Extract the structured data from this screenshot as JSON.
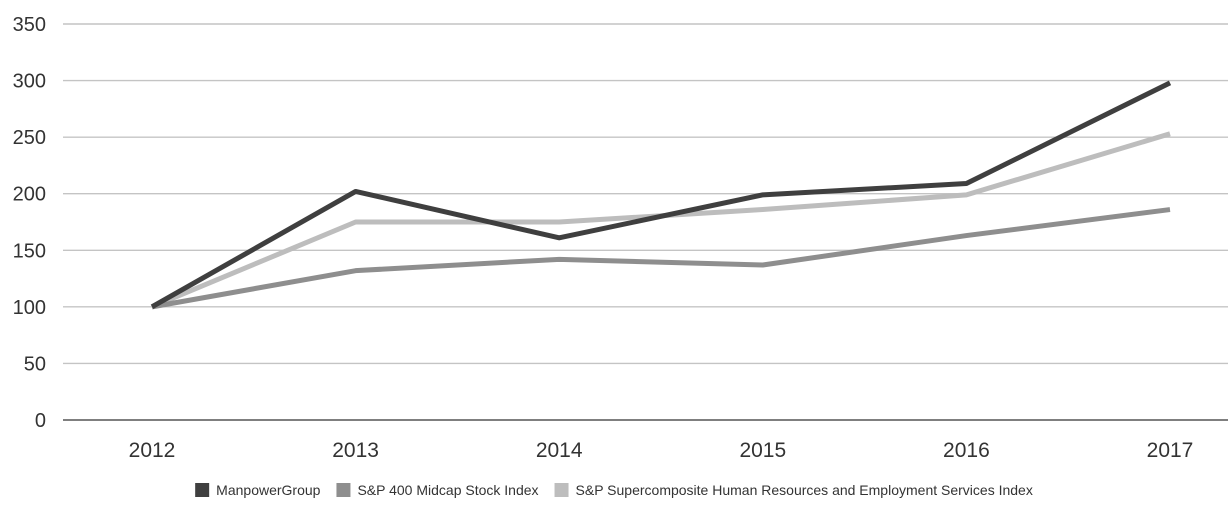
{
  "chart_data": {
    "type": "line",
    "title": "",
    "xlabel": "",
    "ylabel": "",
    "categories": [
      "2012",
      "2013",
      "2014",
      "2015",
      "2016",
      "2017"
    ],
    "ylim": [
      0,
      350
    ],
    "yticks": [
      0,
      50,
      100,
      150,
      200,
      250,
      300,
      350
    ],
    "grid": true,
    "legend_position": "bottom",
    "series": [
      {
        "name": "ManpowerGroup",
        "values": [
          100,
          202,
          161,
          199,
          209,
          298
        ],
        "color": "#3f3f3f"
      },
      {
        "name": "S&P 400 Midcap Stock Index",
        "values": [
          100,
          132,
          142,
          137,
          163,
          186
        ],
        "color": "#8e8e8e"
      },
      {
        "name": "S&P Supercomposite Human Resources and Employment Services Index",
        "values": [
          100,
          175,
          175,
          186,
          199,
          253
        ],
        "color": "#bdbdbd"
      }
    ]
  }
}
